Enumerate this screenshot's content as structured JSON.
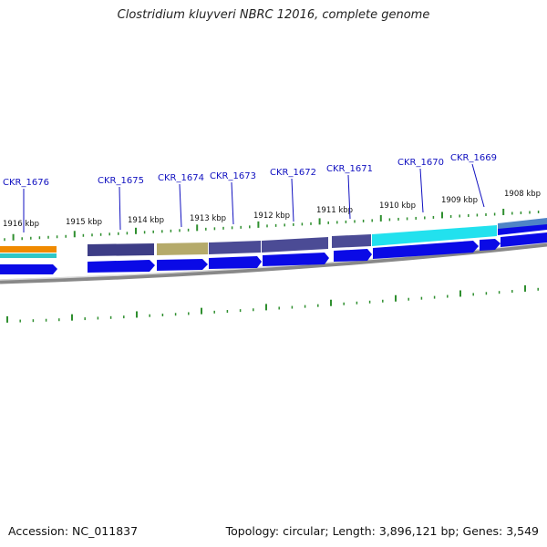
{
  "title": "Clostridium kluyveri NBRC 12016, complete genome",
  "footer": {
    "accession": "Accession: NC_011837",
    "summary": "Topology: circular; Length: 3,896,121 bp; Genes: 3,549"
  },
  "colors": {
    "gene_label": "#1010c0",
    "tick": "#2f8f2f",
    "cds_forward": "#0a0ae6",
    "backbone": "#888888"
  },
  "genes": [
    {
      "name": "CKR_1676"
    },
    {
      "name": "CKR_1675"
    },
    {
      "name": "CKR_1674"
    },
    {
      "name": "CKR_1673"
    },
    {
      "name": "CKR_1672"
    },
    {
      "name": "CKR_1671"
    },
    {
      "name": "CKR_1670"
    },
    {
      "name": "CKR_1669"
    }
  ],
  "scale_labels": [
    "1916 kbp",
    "1915 kbp",
    "1914 kbp",
    "1913 kbp",
    "1912 kbp",
    "1911 kbp",
    "1910 kbp",
    "1909 kbp",
    "1908 kbp"
  ]
}
